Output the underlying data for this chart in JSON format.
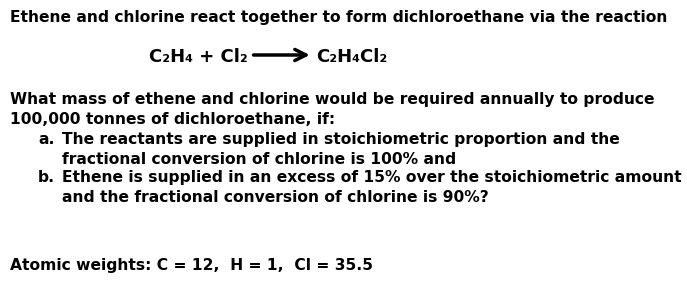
{
  "bg_color": "#ffffff",
  "text_color": "#000000",
  "line1": "Ethene and chlorine react together to form dichloroethane via the reaction",
  "eq_left": "C₂H₄ + Cl₂",
  "eq_right": "C₂H₄Cl₂",
  "para1_line1": "What mass of ethene and chlorine would be required annually to produce",
  "para1_line2": "100,000 tonnes of dichloroethane, if:",
  "item_a_label": "a.",
  "item_a_line1": "The reactants are supplied in stoichiometric proportion and the",
  "item_a_line2": "fractional conversion of chlorine is 100% and",
  "item_b_label": "b.",
  "item_b_line1": "Ethene is supplied in an excess of 15% over the stoichiometric amount",
  "item_b_line2": "and the fractional conversion of chlorine is 90%?",
  "footer": "Atomic weights: C = 12,  H = 1,  Cl = 35.5",
  "font_size": 11.2,
  "eq_font_size": 13.0,
  "fig_width": 6.87,
  "fig_height": 2.97,
  "dpi": 100
}
